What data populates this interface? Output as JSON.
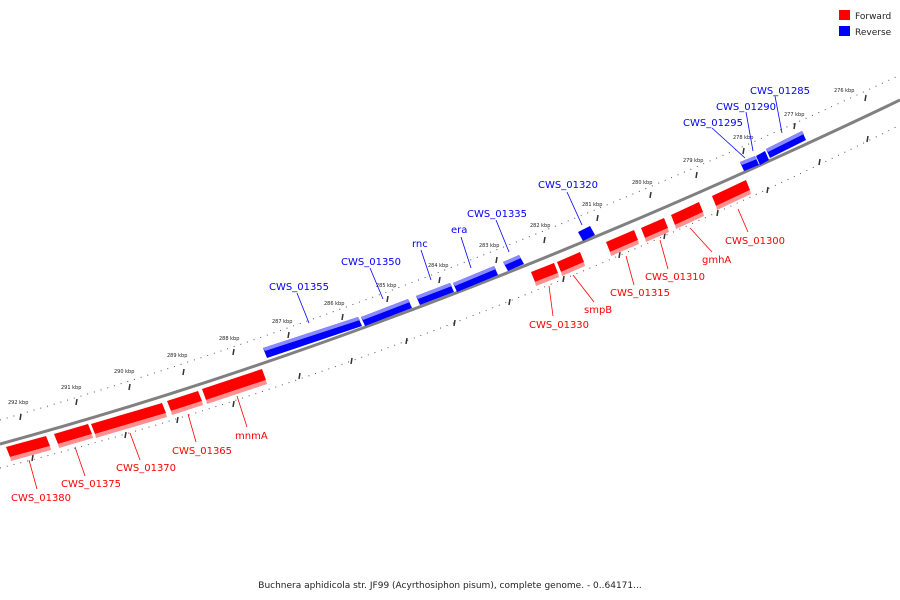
{
  "legend": [
    {
      "label": "Forward",
      "color": "#ff0000"
    },
    {
      "label": "Reverse",
      "color": "#0000ff"
    }
  ],
  "caption": "Buchnera aphidicola str. JF99 (Acyrthosiphon pisum), complete genome. - 0..64171...",
  "ticks": [
    "276 kbp",
    "277 kbp",
    "278 kbp",
    "279 kbp",
    "280 kbp",
    "281 kbp",
    "282 kbp",
    "283 kbp",
    "284 kbp",
    "285 kbp",
    "286 kbp",
    "287 kbp",
    "288 kbp",
    "289 kbp",
    "290 kbp",
    "291 kbp",
    "292 kbp"
  ],
  "genes": {
    "reverse": [
      "CWS_01285",
      "CWS_01290",
      "CWS_01295",
      "CWS_01320",
      "CWS_01335",
      "era",
      "rnc",
      "CWS_01350",
      "CWS_01355"
    ],
    "forward": [
      "CWS_01300",
      "gmhA",
      "CWS_01310",
      "CWS_01315",
      "smpB",
      "CWS_01330",
      "mnmA",
      "CWS_01365",
      "CWS_01370",
      "CWS_01375",
      "CWS_01380"
    ]
  },
  "colors": {
    "forward": "#ff0000",
    "reverse": "#0000ff",
    "backbone": "#808080"
  }
}
